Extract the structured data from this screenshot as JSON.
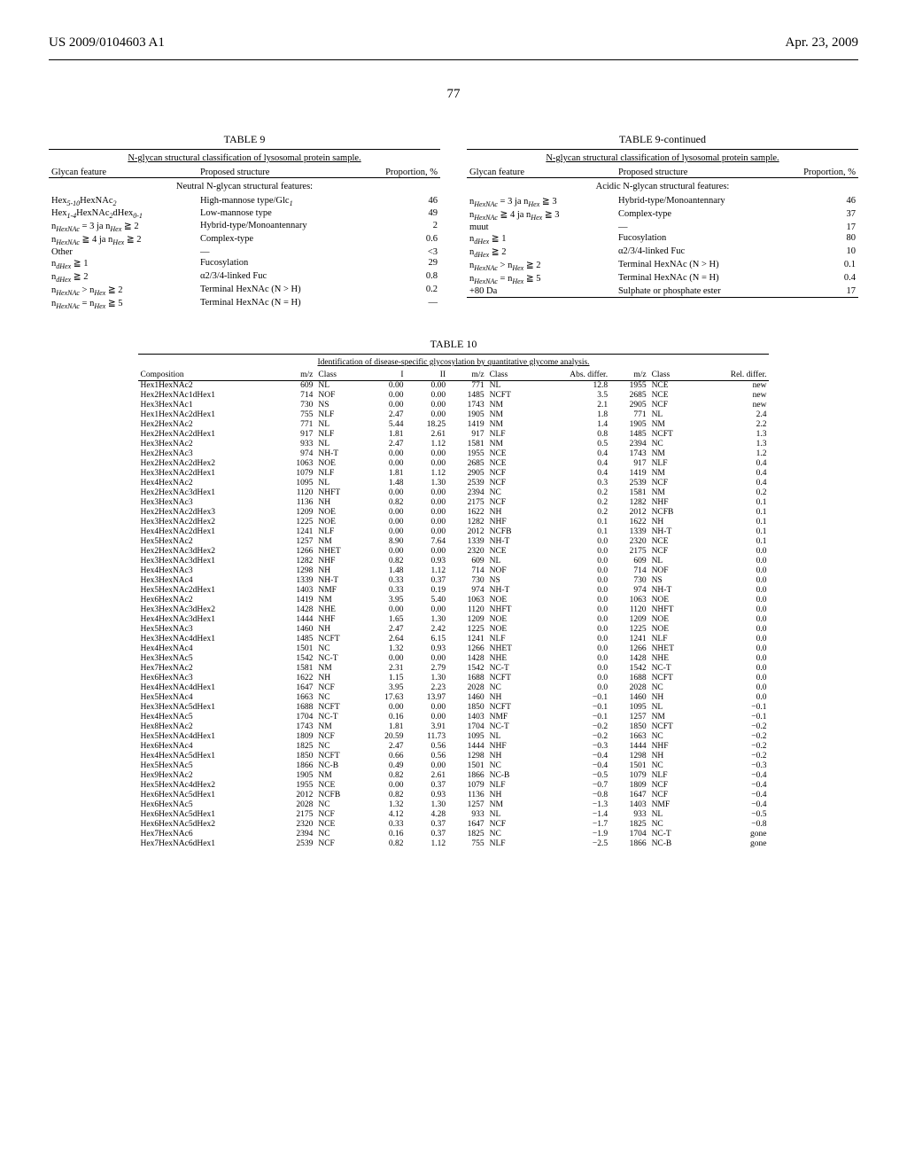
{
  "header": {
    "publication": "US 2009/0104603 A1",
    "date": "Apr. 23, 2009",
    "page": "77"
  },
  "table9": {
    "label": "TABLE 9",
    "label_cont": "TABLE 9-continued",
    "title": "N-glycan structural classification of lysosomal protein sample.",
    "col_feature": "Glycan feature",
    "col_structure": "Proposed structure",
    "col_prop": "Proportion, %",
    "neutral_header": "Neutral N-glycan structural features:",
    "acidic_header": "Acidic N-glycan structural features:",
    "neutral_rows": [
      {
        "feature": "Hex₅₋₁₀HexNAc₂",
        "structure": "High-mannose type/Glc₁",
        "prop": "46"
      },
      {
        "feature": "Hex₁₋₄HexNAc₂dHex₀₋₁",
        "structure": "Low-mannose type",
        "prop": "49"
      },
      {
        "feature": "n_HexNAc = 3 ja n_Hex ≧ 2",
        "structure": "Hybrid-type/Monoantennary",
        "prop": "2"
      },
      {
        "feature": "n_HexNAc ≧ 4 ja n_Hex ≧ 2",
        "structure": "Complex-type",
        "prop": "0.6"
      },
      {
        "feature": "Other",
        "structure": "—",
        "prop": "<3"
      },
      {
        "feature": "n_dHex ≧ 1",
        "structure": "Fucosylation",
        "prop": "29"
      },
      {
        "feature": "n_dHex ≧ 2",
        "structure": "α2/3/4-linked Fuc",
        "prop": "0.8"
      },
      {
        "feature": "n_HexNAc > n_Hex ≧ 2",
        "structure": "Terminal HexNAc (N > H)",
        "prop": "0.2"
      },
      {
        "feature": "n_HexNAc = n_Hex ≧ 5",
        "structure": "Terminal HexNAc (N = H)",
        "prop": "—"
      }
    ],
    "acidic_rows": [
      {
        "feature": "n_HexNAc = 3 ja n_Hex ≧ 3",
        "structure": "Hybrid-type/Monoantennary",
        "prop": "46"
      },
      {
        "feature": "n_HexNAc ≧ 4 ja n_Hex ≧ 3",
        "structure": "Complex-type",
        "prop": "37"
      },
      {
        "feature": "muut",
        "structure": "—",
        "prop": "17"
      },
      {
        "feature": "n_dHex ≧ 1",
        "structure": "Fucosylation",
        "prop": "80"
      },
      {
        "feature": "n_dHex ≧ 2",
        "structure": "α2/3/4-linked Fuc",
        "prop": "10"
      },
      {
        "feature": "n_HexNAc > n_Hex ≧ 2",
        "structure": "Terminal HexNAc (N > H)",
        "prop": "0.1"
      },
      {
        "feature": "n_HexNAc = n_Hex ≧ 5",
        "structure": "Terminal HexNAc (N = H)",
        "prop": "0.4"
      },
      {
        "feature": "+80 Da",
        "structure": "Sulphate or phosphate ester",
        "prop": "17"
      }
    ]
  },
  "table10": {
    "label": "TABLE 10",
    "title": "Identification of disease-specific glycosylation by quantitative glycome analysis.",
    "cols": [
      "Composition",
      "m/z",
      "Class",
      "I",
      "II",
      "m/z",
      "Class",
      "Abs. differ.",
      "m/z",
      "Class",
      "Rel. differ."
    ],
    "rows": [
      [
        "Hex1HexNAc2",
        "609",
        "NL",
        "0.00",
        "0.00",
        "771",
        "NL",
        "12.8",
        "1955",
        "NCE",
        "new"
      ],
      [
        "Hex2HexNAc1dHex1",
        "714",
        "NOF",
        "0.00",
        "0.00",
        "1485",
        "NCFT",
        "3.5",
        "2685",
        "NCE",
        "new"
      ],
      [
        "Hex3HexNAc1",
        "730",
        "NS",
        "0.00",
        "0.00",
        "1743",
        "NM",
        "2.1",
        "2905",
        "NCF",
        "new"
      ],
      [
        "Hex1HexNAc2dHex1",
        "755",
        "NLF",
        "2.47",
        "0.00",
        "1905",
        "NM",
        "1.8",
        "771",
        "NL",
        "2.4"
      ],
      [
        "Hex2HexNAc2",
        "771",
        "NL",
        "5.44",
        "18.25",
        "1419",
        "NM",
        "1.4",
        "1905",
        "NM",
        "2.2"
      ],
      [
        "Hex2HexNAc2dHex1",
        "917",
        "NLF",
        "1.81",
        "2.61",
        "917",
        "NLF",
        "0.8",
        "1485",
        "NCFT",
        "1.3"
      ],
      [
        "Hex3HexNAc2",
        "933",
        "NL",
        "2.47",
        "1.12",
        "1581",
        "NM",
        "0.5",
        "2394",
        "NC",
        "1.3"
      ],
      [
        "Hex2HexNAc3",
        "974",
        "NH-T",
        "0.00",
        "0.00",
        "1955",
        "NCE",
        "0.4",
        "1743",
        "NM",
        "1.2"
      ],
      [
        "Hex2HexNAc2dHex2",
        "1063",
        "NOE",
        "0.00",
        "0.00",
        "2685",
        "NCE",
        "0.4",
        "917",
        "NLF",
        "0.4"
      ],
      [
        "Hex3HexNAc2dHex1",
        "1079",
        "NLF",
        "1.81",
        "1.12",
        "2905",
        "NCF",
        "0.4",
        "1419",
        "NM",
        "0.4"
      ],
      [
        "Hex4HexNAc2",
        "1095",
        "NL",
        "1.48",
        "1.30",
        "2539",
        "NCF",
        "0.3",
        "2539",
        "NCF",
        "0.4"
      ],
      [
        "Hex2HexNAc3dHex1",
        "1120",
        "NHFT",
        "0.00",
        "0.00",
        "2394",
        "NC",
        "0.2",
        "1581",
        "NM",
        "0.2"
      ],
      [
        "Hex3HexNAc3",
        "1136",
        "NH",
        "0.82",
        "0.00",
        "2175",
        "NCF",
        "0.2",
        "1282",
        "NHF",
        "0.1"
      ],
      [
        "Hex2HexNAc2dHex3",
        "1209",
        "NOE",
        "0.00",
        "0.00",
        "1622",
        "NH",
        "0.2",
        "2012",
        "NCFB",
        "0.1"
      ],
      [
        "Hex3HexNAc2dHex2",
        "1225",
        "NOE",
        "0.00",
        "0.00",
        "1282",
        "NHF",
        "0.1",
        "1622",
        "NH",
        "0.1"
      ],
      [
        "Hex4HexNAc2dHex1",
        "1241",
        "NLF",
        "0.00",
        "0.00",
        "2012",
        "NCFB",
        "0.1",
        "1339",
        "NH-T",
        "0.1"
      ],
      [
        "Hex5HexNAc2",
        "1257",
        "NM",
        "8.90",
        "7.64",
        "1339",
        "NH-T",
        "0.0",
        "2320",
        "NCE",
        "0.1"
      ],
      [
        "Hex2HexNAc3dHex2",
        "1266",
        "NHET",
        "0.00",
        "0.00",
        "2320",
        "NCE",
        "0.0",
        "2175",
        "NCF",
        "0.0"
      ],
      [
        "Hex3HexNAc3dHex1",
        "1282",
        "NHF",
        "0.82",
        "0.93",
        "609",
        "NL",
        "0.0",
        "609",
        "NL",
        "0.0"
      ],
      [
        "Hex4HexNAc3",
        "1298",
        "NH",
        "1.48",
        "1.12",
        "714",
        "NOF",
        "0.0",
        "714",
        "NOF",
        "0.0"
      ],
      [
        "Hex3HexNAc4",
        "1339",
        "NH-T",
        "0.33",
        "0.37",
        "730",
        "NS",
        "0.0",
        "730",
        "NS",
        "0.0"
      ],
      [
        "Hex5HexNAc2dHex1",
        "1403",
        "NMF",
        "0.33",
        "0.19",
        "974",
        "NH-T",
        "0.0",
        "974",
        "NH-T",
        "0.0"
      ],
      [
        "Hex6HexNAc2",
        "1419",
        "NM",
        "3.95",
        "5.40",
        "1063",
        "NOE",
        "0.0",
        "1063",
        "NOE",
        "0.0"
      ],
      [
        "Hex3HexNAc3dHex2",
        "1428",
        "NHE",
        "0.00",
        "0.00",
        "1120",
        "NHFT",
        "0.0",
        "1120",
        "NHFT",
        "0.0"
      ],
      [
        "Hex4HexNAc3dHex1",
        "1444",
        "NHF",
        "1.65",
        "1.30",
        "1209",
        "NOE",
        "0.0",
        "1209",
        "NOE",
        "0.0"
      ],
      [
        "Hex5HexNAc3",
        "1460",
        "NH",
        "2.47",
        "2.42",
        "1225",
        "NOE",
        "0.0",
        "1225",
        "NOE",
        "0.0"
      ],
      [
        "Hex3HexNAc4dHex1",
        "1485",
        "NCFT",
        "2.64",
        "6.15",
        "1241",
        "NLF",
        "0.0",
        "1241",
        "NLF",
        "0.0"
      ],
      [
        "Hex4HexNAc4",
        "1501",
        "NC",
        "1.32",
        "0.93",
        "1266",
        "NHET",
        "0.0",
        "1266",
        "NHET",
        "0.0"
      ],
      [
        "Hex3HexNAc5",
        "1542",
        "NC-T",
        "0.00",
        "0.00",
        "1428",
        "NHE",
        "0.0",
        "1428",
        "NHE",
        "0.0"
      ],
      [
        "Hex7HexNAc2",
        "1581",
        "NM",
        "2.31",
        "2.79",
        "1542",
        "NC-T",
        "0.0",
        "1542",
        "NC-T",
        "0.0"
      ],
      [
        "Hex6HexNAc3",
        "1622",
        "NH",
        "1.15",
        "1.30",
        "1688",
        "NCFT",
        "0.0",
        "1688",
        "NCFT",
        "0.0"
      ],
      [
        "Hex4HexNAc4dHex1",
        "1647",
        "NCF",
        "3.95",
        "2.23",
        "2028",
        "NC",
        "0.0",
        "2028",
        "NC",
        "0.0"
      ],
      [
        "Hex5HexNAc4",
        "1663",
        "NC",
        "17.63",
        "13.97",
        "1460",
        "NH",
        "−0.1",
        "1460",
        "NH",
        "0.0"
      ],
      [
        "Hex3HexNAc5dHex1",
        "1688",
        "NCFT",
        "0.00",
        "0.00",
        "1850",
        "NCFT",
        "−0.1",
        "1095",
        "NL",
        "−0.1"
      ],
      [
        "Hex4HexNAc5",
        "1704",
        "NC-T",
        "0.16",
        "0.00",
        "1403",
        "NMF",
        "−0.1",
        "1257",
        "NM",
        "−0.1"
      ],
      [
        "Hex8HexNAc2",
        "1743",
        "NM",
        "1.81",
        "3.91",
        "1704",
        "NC-T",
        "−0.2",
        "1850",
        "NCFT",
        "−0.2"
      ],
      [
        "Hex5HexNAc4dHex1",
        "1809",
        "NCF",
        "20.59",
        "11.73",
        "1095",
        "NL",
        "−0.2",
        "1663",
        "NC",
        "−0.2"
      ],
      [
        "Hex6HexNAc4",
        "1825",
        "NC",
        "2.47",
        "0.56",
        "1444",
        "NHF",
        "−0.3",
        "1444",
        "NHF",
        "−0.2"
      ],
      [
        "Hex4HexNAc5dHex1",
        "1850",
        "NCFT",
        "0.66",
        "0.56",
        "1298",
        "NH",
        "−0.4",
        "1298",
        "NH",
        "−0.2"
      ],
      [
        "Hex5HexNAc5",
        "1866",
        "NC-B",
        "0.49",
        "0.00",
        "1501",
        "NC",
        "−0.4",
        "1501",
        "NC",
        "−0.3"
      ],
      [
        "Hex9HexNAc2",
        "1905",
        "NM",
        "0.82",
        "2.61",
        "1866",
        "NC-B",
        "−0.5",
        "1079",
        "NLF",
        "−0.4"
      ],
      [
        "Hex5HexNAc4dHex2",
        "1955",
        "NCE",
        "0.00",
        "0.37",
        "1079",
        "NLF",
        "−0.7",
        "1809",
        "NCF",
        "−0.4"
      ],
      [
        "Hex6HexNAc5dHex1",
        "2012",
        "NCFB",
        "0.82",
        "0.93",
        "1136",
        "NH",
        "−0.8",
        "1647",
        "NCF",
        "−0.4"
      ],
      [
        "Hex6HexNAc5",
        "2028",
        "NC",
        "1.32",
        "1.30",
        "1257",
        "NM",
        "−1.3",
        "1403",
        "NMF",
        "−0.4"
      ],
      [
        "Hex6HexNAc5dHex1",
        "2175",
        "NCF",
        "4.12",
        "4.28",
        "933",
        "NL",
        "−1.4",
        "933",
        "NL",
        "−0.5"
      ],
      [
        "Hex6HexNAc5dHex2",
        "2320",
        "NCE",
        "0.33",
        "0.37",
        "1647",
        "NCF",
        "−1.7",
        "1825",
        "NC",
        "−0.8"
      ],
      [
        "Hex7HexNAc6",
        "2394",
        "NC",
        "0.16",
        "0.37",
        "1825",
        "NC",
        "−1.9",
        "1704",
        "NC-T",
        "gone"
      ],
      [
        "Hex7HexNAc6dHex1",
        "2539",
        "NCF",
        "0.82",
        "1.12",
        "755",
        "NLF",
        "−2.5",
        "1866",
        "NC-B",
        "gone"
      ]
    ]
  }
}
